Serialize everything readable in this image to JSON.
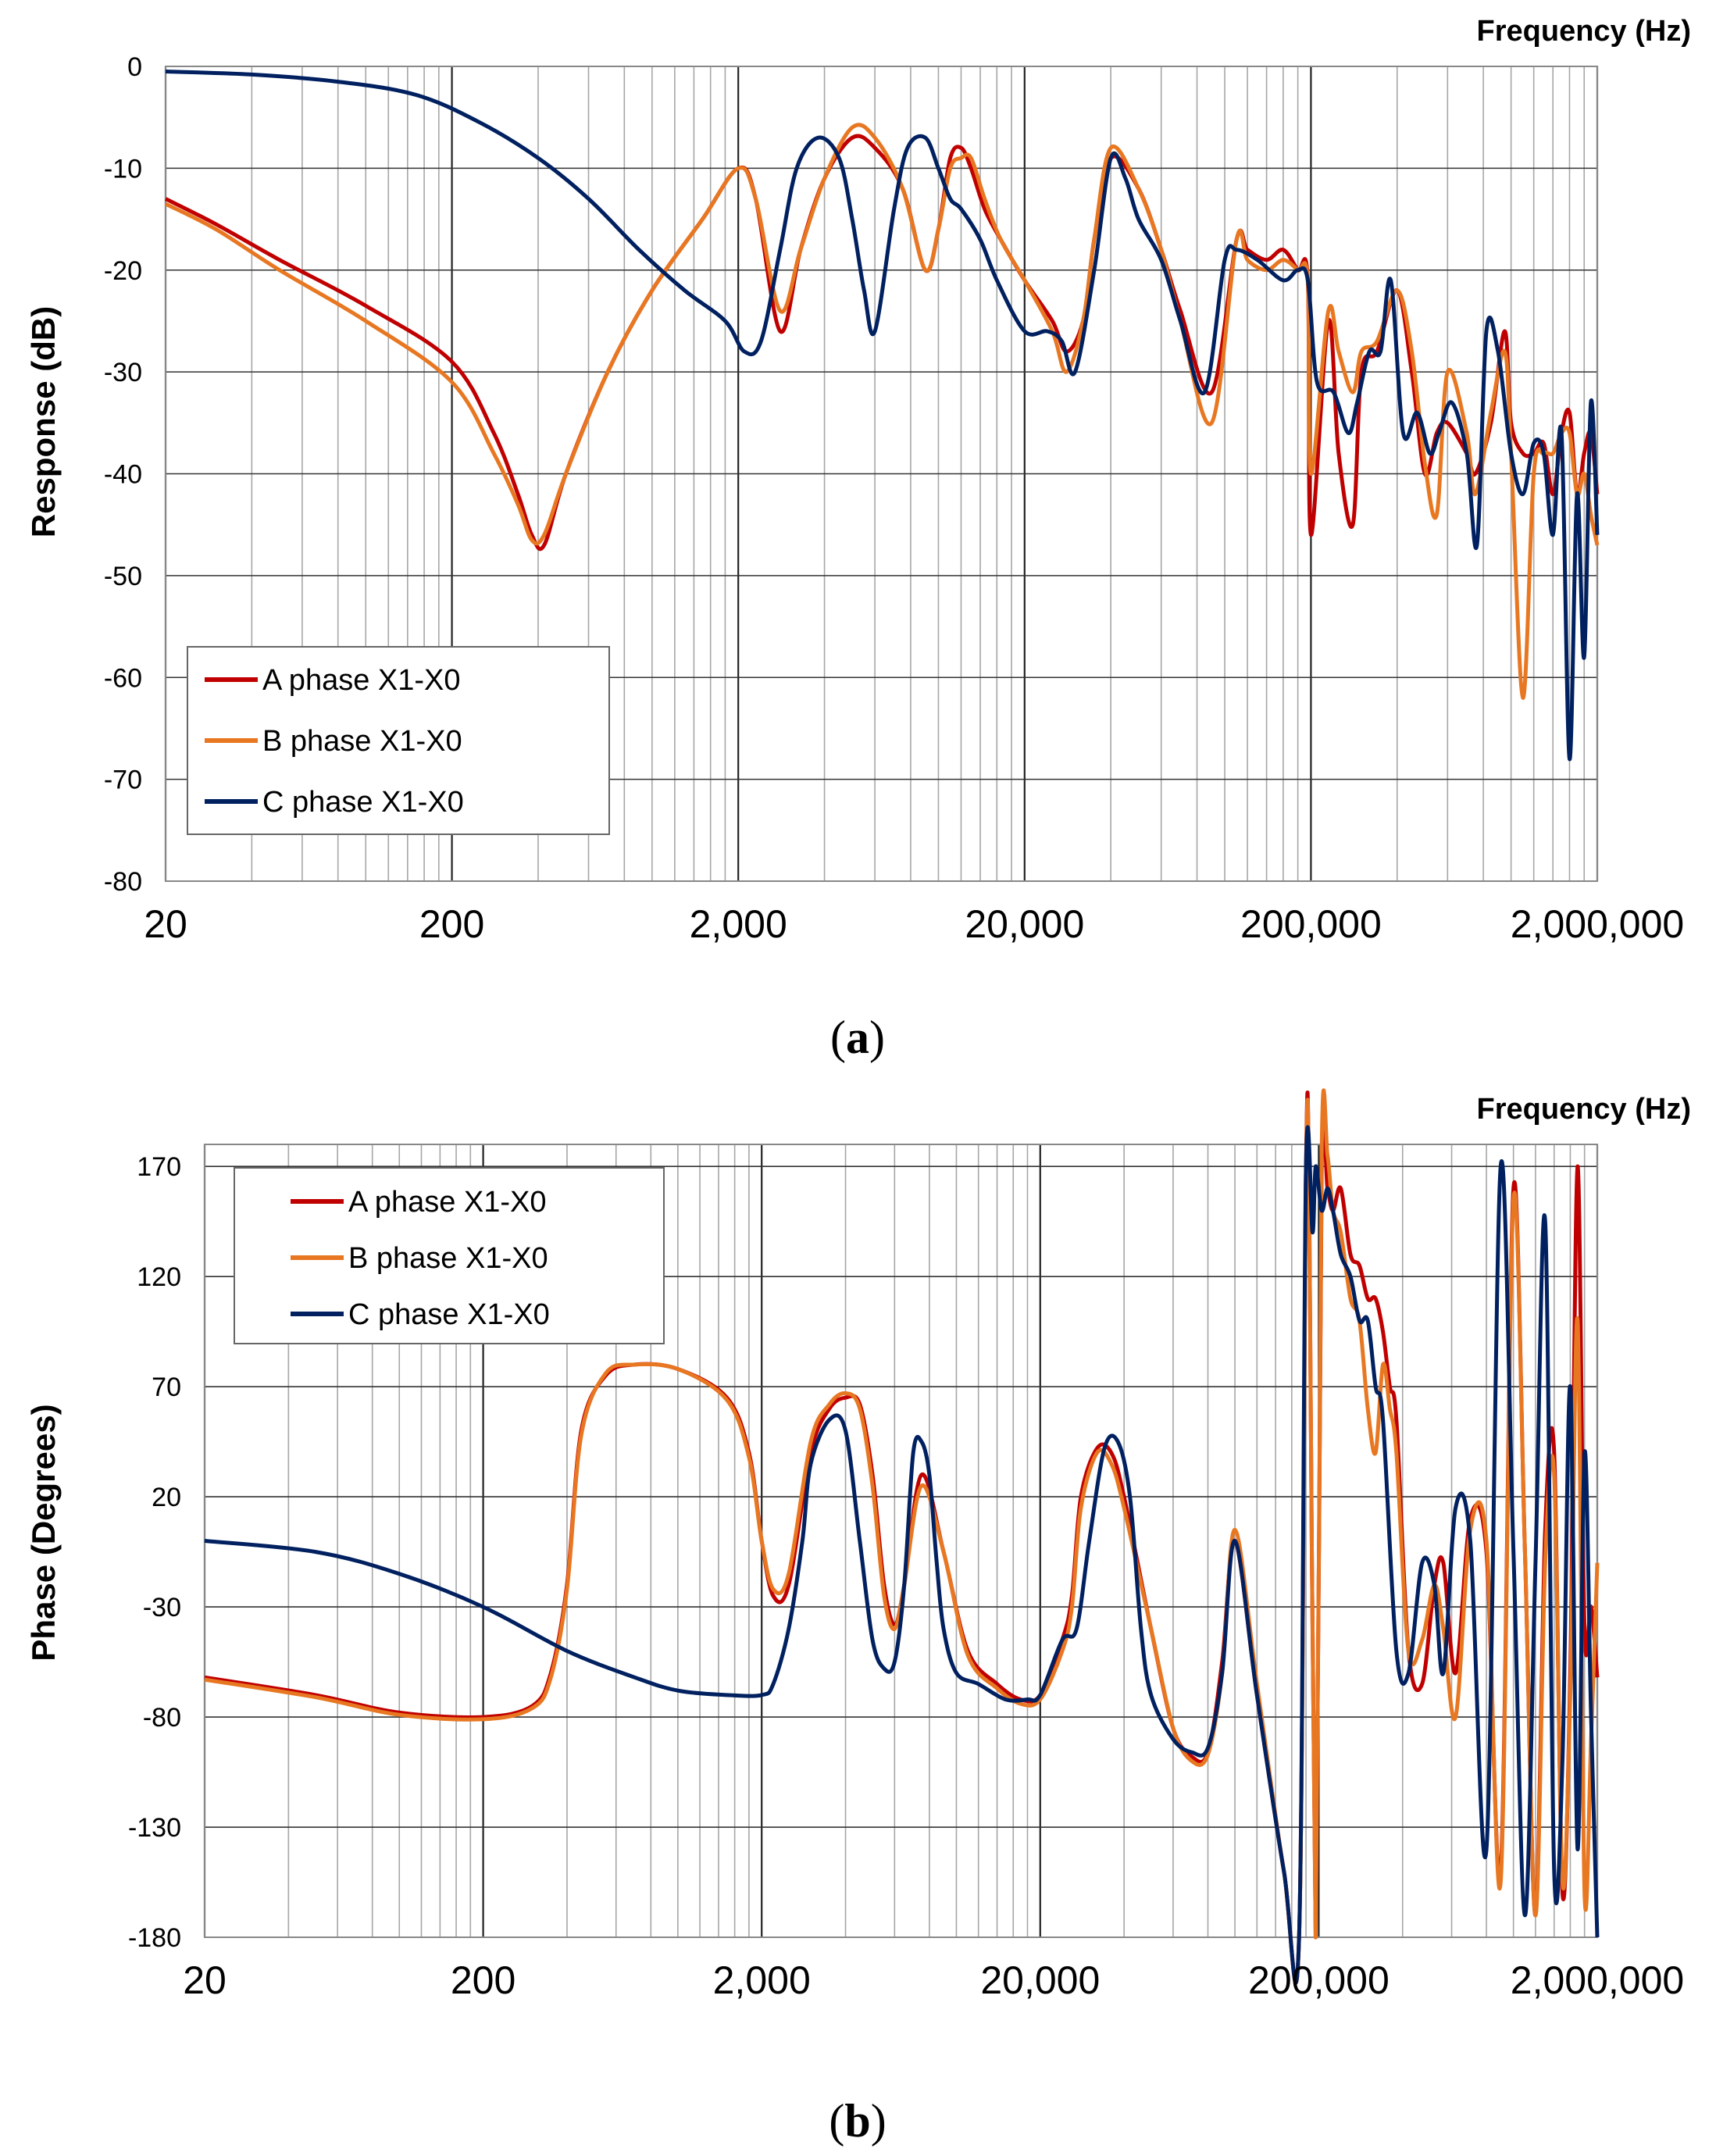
{
  "chart_data": [
    {
      "type": "line",
      "panel_label": "a",
      "title": "",
      "xlabel": "Frequency (Hz)",
      "ylabel": "Response (dB)",
      "xscale": "log",
      "xlim": [
        20,
        2000000
      ],
      "ylim": [
        -80,
        0
      ],
      "xticks": [
        20,
        200,
        2000,
        20000,
        200000,
        2000000
      ],
      "xtick_labels": [
        "20",
        "200",
        "2,000",
        "20,000",
        "200,000",
        "2,000,000"
      ],
      "yticks": [
        0,
        -10,
        -20,
        -30,
        -40,
        -50,
        -60,
        -70,
        -80
      ],
      "ytick_labels": [
        "0",
        "-10",
        "-20",
        "-30",
        "-40",
        "-50",
        "-60",
        "-70",
        "-80"
      ],
      "grid": true,
      "legend_position": "bottom-left",
      "series": [
        {
          "name": "A phase X1-X0",
          "color": "#c00000",
          "x": [
            20,
            30,
            50,
            100,
            200,
            280,
            340,
            380,
            420,
            500,
            700,
            1000,
            1500,
            2000,
            2300,
            2800,
            3300,
            4000,
            5000,
            6000,
            7500,
            9000,
            10000,
            11000,
            12000,
            13000,
            14500,
            16500,
            20000,
            25000,
            28000,
            32000,
            35000,
            40000,
            50000,
            60000,
            70000,
            90000,
            110000,
            120000,
            140000,
            160000,
            180000,
            195000,
            200000,
            230000,
            250000,
            280000,
            300000,
            340000,
            400000,
            450000,
            500000,
            550000,
            600000,
            700000,
            750000,
            850000,
            950000,
            1000000,
            1100000,
            1200000,
            1300000,
            1400000,
            1500000,
            1600000,
            1700000,
            1800000,
            1900000,
            2000000
          ],
          "y": [
            -13,
            -15.5,
            -19,
            -23.5,
            -29,
            -36,
            -42,
            -46,
            -47,
            -40,
            -30,
            -22,
            -15,
            -10,
            -13,
            -26,
            -18,
            -11,
            -7,
            -8,
            -12,
            -20,
            -16,
            -9,
            -8,
            -10,
            -14,
            -17,
            -21,
            -25,
            -28,
            -25,
            -17,
            -9,
            -12,
            -18,
            -24,
            -32,
            -17,
            -18,
            -19,
            -18,
            -20,
            -21,
            -46,
            -25,
            -38,
            -45,
            -30,
            -28,
            -22,
            -30,
            -40,
            -36,
            -35,
            -38,
            -40,
            -35,
            -26,
            -35,
            -38,
            -38,
            -37,
            -42,
            -36,
            -34,
            -42,
            -38,
            -36,
            -42
          ]
        },
        {
          "name": "B phase X1-X0",
          "color": "#e87722",
          "x": [
            20,
            30,
            50,
            100,
            200,
            280,
            340,
            380,
            420,
            500,
            700,
            1000,
            1500,
            2000,
            2300,
            2800,
            3300,
            4000,
            5000,
            6000,
            7500,
            9000,
            10000,
            11000,
            12000,
            13000,
            14500,
            16500,
            20000,
            25000,
            28000,
            32000,
            35000,
            40000,
            50000,
            60000,
            70000,
            90000,
            110000,
            120000,
            140000,
            160000,
            180000,
            195000,
            200000,
            230000,
            250000,
            280000,
            300000,
            340000,
            400000,
            450000,
            500000,
            550000,
            600000,
            700000,
            750000,
            850000,
            950000,
            1000000,
            1100000,
            1200000,
            1300000,
            1400000,
            1500000,
            1600000,
            1700000,
            1800000,
            1900000,
            2000000
          ],
          "y": [
            -13.5,
            -16,
            -20,
            -25,
            -31,
            -38,
            -43,
            -46.5,
            -46,
            -40,
            -30,
            -22,
            -15,
            -10,
            -13,
            -24,
            -18,
            -11,
            -6,
            -7,
            -12,
            -20,
            -16,
            -10,
            -9,
            -9,
            -13,
            -17,
            -21,
            -26,
            -30,
            -25,
            -17,
            -8,
            -12,
            -18,
            -25,
            -35,
            -17,
            -19,
            -20,
            -19,
            -20,
            -21,
            -40,
            -24,
            -28,
            -32,
            -28,
            -27,
            -22,
            -28,
            -39,
            -44,
            -30,
            -36,
            -42,
            -34,
            -28,
            -38,
            -62,
            -40,
            -38,
            -38,
            -36,
            -36,
            -42,
            -40,
            -44,
            -47
          ]
        },
        {
          "name": "C phase X1-X0",
          "color": "#002060",
          "x": [
            20,
            40,
            80,
            150,
            250,
            400,
            600,
            900,
            1300,
            1800,
            2100,
            2400,
            2800,
            3200,
            3800,
            4500,
            5000,
            5500,
            6000,
            7000,
            7800,
            9000,
            10000,
            11000,
            12000,
            14000,
            16000,
            20000,
            24000,
            27000,
            30000,
            35000,
            40000,
            45000,
            50000,
            60000,
            70000,
            85000,
            100000,
            110000,
            130000,
            160000,
            180000,
            195000,
            210000,
            240000,
            270000,
            290000,
            320000,
            350000,
            380000,
            420000,
            470000,
            520000,
            560000,
            620000,
            700000,
            760000,
            820000,
            900000,
            1000000,
            1100000,
            1200000,
            1300000,
            1400000,
            1500000,
            1600000,
            1700000,
            1800000,
            1900000,
            2000000
          ],
          "y": [
            -0.5,
            -0.8,
            -1.5,
            -2.8,
            -5.5,
            -9,
            -13,
            -18,
            -22,
            -25,
            -28,
            -27,
            -18,
            -10,
            -7,
            -9,
            -15,
            -22,
            -26,
            -14,
            -8,
            -7,
            -10,
            -13,
            -14,
            -17,
            -21,
            -26,
            -26,
            -27,
            -30,
            -20,
            -9,
            -11,
            -15,
            -19,
            -25,
            -32,
            -19,
            -18,
            -19,
            -21,
            -20,
            -21,
            -31,
            -32,
            -36,
            -33,
            -28,
            -28,
            -21,
            -36,
            -34,
            -38,
            -36,
            -33,
            -38,
            -47,
            -26,
            -28,
            -38,
            -42,
            -37,
            -38,
            -46,
            -36,
            -68,
            -42,
            -58,
            -33,
            -46
          ]
        }
      ]
    },
    {
      "type": "line",
      "panel_label": "b",
      "title": "",
      "xlabel": "Frequency (Hz)",
      "ylabel": "Phase (Degrees)",
      "xscale": "log",
      "xlim": [
        20,
        2000000
      ],
      "ylim": [
        -180,
        180
      ],
      "xticks": [
        20,
        200,
        2000,
        20000,
        200000,
        2000000
      ],
      "xtick_labels": [
        "20",
        "200",
        "2,000",
        "20,000",
        "200,000",
        "2,000,000"
      ],
      "yticks": [
        170,
        120,
        70,
        20,
        -30,
        -80,
        -130,
        -180
      ],
      "ytick_labels": [
        "170",
        "120",
        "70",
        "20",
        "-30",
        "-80",
        "-130",
        "-180"
      ],
      "grid": true,
      "legend_position": "top-left",
      "series": [
        {
          "name": "A phase X1-X0",
          "color": "#c00000",
          "x": [
            20,
            50,
            100,
            200,
            300,
            350,
            400,
            450,
            550,
            700,
            1000,
            1500,
            1800,
            2000,
            2200,
            2500,
            3000,
            3500,
            4000,
            4500,
            5000,
            5500,
            6000,
            6500,
            7500,
            9000,
            11000,
            14000,
            17000,
            20000,
            24000,
            26000,
            28000,
            32000,
            36000,
            40000,
            50000,
            60000,
            70000,
            80000,
            90000,
            100000,
            120000,
            150000,
            170000,
            180000,
            185000,
            195000,
            205000,
            215000,
            225000,
            240000,
            260000,
            280000,
            300000,
            320000,
            340000,
            360000,
            380000,
            420000,
            470000,
            520000,
            560000,
            620000,
            700000,
            800000,
            900000,
            1000000,
            1100000,
            1200000,
            1300000,
            1400000,
            1500000,
            1600000,
            1700000,
            1800000,
            1900000,
            2000000
          ],
          "y": [
            -62,
            -70,
            -78,
            -80,
            -75,
            -60,
            -20,
            50,
            75,
            80,
            78,
            65,
            40,
            0,
            -25,
            -20,
            40,
            60,
            65,
            62,
            30,
            -20,
            -38,
            -20,
            30,
            -5,
            -50,
            -65,
            -72,
            -70,
            -45,
            -25,
            20,
            42,
            40,
            20,
            -40,
            -85,
            -98,
            -96,
            -55,
            0,
            -70,
            -150,
            -180,
            170,
            150,
            -180,
            170,
            160,
            150,
            160,
            130,
            125,
            110,
            110,
            95,
            70,
            55,
            -50,
            -65,
            -20,
            -10,
            -60,
            10,
            -5,
            -150,
            160,
            -5,
            -170,
            5,
            40,
            -160,
            -60,
            170,
            -40,
            -30,
            -62
          ]
        },
        {
          "name": "B phase X1-X0",
          "color": "#e87722",
          "x": [
            20,
            50,
            100,
            200,
            300,
            350,
            400,
            450,
            550,
            700,
            1000,
            1500,
            1800,
            2000,
            2200,
            2500,
            3000,
            3500,
            4000,
            4500,
            5000,
            5500,
            6000,
            6500,
            7500,
            9000,
            11000,
            14000,
            17000,
            20000,
            24000,
            26000,
            28000,
            32000,
            36000,
            40000,
            50000,
            60000,
            70000,
            80000,
            90000,
            100000,
            120000,
            150000,
            170000,
            180000,
            185000,
            195000,
            205000,
            215000,
            225000,
            240000,
            260000,
            280000,
            300000,
            320000,
            340000,
            360000,
            380000,
            420000,
            470000,
            520000,
            560000,
            620000,
            700000,
            800000,
            900000,
            1000000,
            1100000,
            1200000,
            1300000,
            1400000,
            1500000,
            1600000,
            1700000,
            1800000,
            1900000,
            2000000
          ],
          "y": [
            -63,
            -71,
            -79,
            -81,
            -76,
            -62,
            -22,
            48,
            76,
            80,
            78,
            64,
            38,
            0,
            -22,
            -15,
            45,
            62,
            67,
            60,
            25,
            -25,
            -40,
            -20,
            25,
            -5,
            -52,
            -67,
            -74,
            -72,
            -50,
            -30,
            15,
            40,
            35,
            15,
            -40,
            -85,
            -100,
            -97,
            -60,
            5,
            -65,
            -150,
            -180,
            165,
            150,
            -180,
            178,
            175,
            150,
            140,
            110,
            100,
            60,
            40,
            80,
            60,
            40,
            -50,
            -45,
            -20,
            -40,
            -80,
            5,
            0,
            -155,
            155,
            -5,
            -170,
            -10,
            30,
            -155,
            -70,
            100,
            -160,
            -90,
            -10
          ]
        },
        {
          "name": "C phase X1-X0",
          "color": "#002060",
          "x": [
            20,
            50,
            100,
            200,
            400,
            700,
            1000,
            1500,
            2000,
            2200,
            2500,
            2800,
            3000,
            3500,
            4000,
            4500,
            5000,
            5500,
            6000,
            6500,
            7000,
            7500,
            8000,
            8500,
            9000,
            10000,
            12000,
            15000,
            18000,
            20000,
            24000,
            27000,
            30000,
            34000,
            38000,
            42000,
            46000,
            50000,
            60000,
            70000,
            80000,
            90000,
            100000,
            120000,
            150000,
            170000,
            180000,
            190000,
            195000,
            205000,
            215000,
            225000,
            240000,
            260000,
            280000,
            300000,
            320000,
            340000,
            380000,
            420000,
            470000,
            520000,
            560000,
            620000,
            700000,
            800000,
            900000,
            1000000,
            1100000,
            1200000,
            1300000,
            1400000,
            1500000,
            1600000,
            1700000,
            1800000,
            1900000,
            2000000
          ],
          "y": [
            0,
            -5,
            -15,
            -30,
            -50,
            -62,
            -68,
            -70,
            -70,
            -65,
            -40,
            0,
            35,
            55,
            50,
            0,
            -45,
            -58,
            -55,
            -20,
            40,
            45,
            30,
            -10,
            -40,
            -60,
            -65,
            -72,
            -72,
            -70,
            -45,
            -40,
            0,
            42,
            45,
            20,
            -40,
            -70,
            -90,
            -96,
            -94,
            -60,
            0,
            -70,
            -150,
            -180,
            170,
            140,
            170,
            150,
            160,
            150,
            130,
            120,
            100,
            100,
            70,
            55,
            -50,
            -60,
            -10,
            -20,
            -60,
            15,
            0,
            -140,
            170,
            -5,
            -170,
            -10,
            145,
            -150,
            -100,
            70,
            -140,
            40,
            -80,
            -180
          ]
        }
      ]
    }
  ]
}
